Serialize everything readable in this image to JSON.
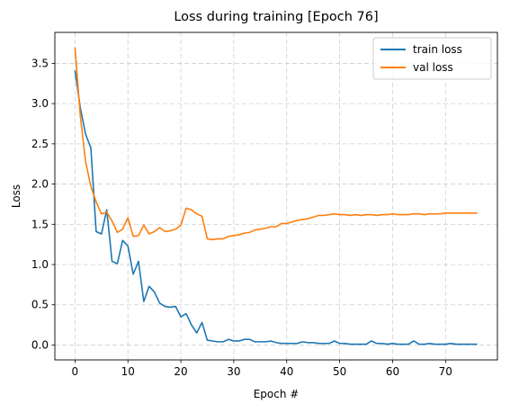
{
  "chart_data": {
    "type": "line",
    "title": "Loss during training [Epoch 76]",
    "xlabel": "Epoch #",
    "ylabel": "Loss",
    "xlim": [
      -3.8,
      79.8
    ],
    "ylim": [
      -0.185,
      3.885
    ],
    "xticks": [
      0,
      10,
      20,
      30,
      40,
      50,
      60,
      70
    ],
    "yticks": [
      0.0,
      0.5,
      1.0,
      1.5,
      2.0,
      2.5,
      3.0,
      3.5
    ],
    "grid": true,
    "legend_position": "top-right",
    "series": [
      {
        "name": "train loss",
        "color": "#1f77b4",
        "x": [
          0,
          1,
          2,
          3,
          4,
          5,
          6,
          7,
          8,
          9,
          10,
          11,
          12,
          13,
          14,
          15,
          16,
          17,
          18,
          19,
          20,
          21,
          22,
          23,
          24,
          25,
          26,
          27,
          28,
          29,
          30,
          31,
          32,
          33,
          34,
          35,
          36,
          37,
          38,
          39,
          40,
          41,
          42,
          43,
          44,
          45,
          46,
          47,
          48,
          49,
          50,
          51,
          52,
          53,
          54,
          55,
          56,
          57,
          58,
          59,
          60,
          61,
          62,
          63,
          64,
          65,
          66,
          67,
          68,
          69,
          70,
          71,
          72,
          73,
          74,
          75,
          76
        ],
        "values": [
          3.41,
          2.95,
          2.62,
          2.45,
          1.41,
          1.38,
          1.68,
          1.04,
          1.01,
          1.3,
          1.23,
          0.88,
          1.04,
          0.54,
          0.73,
          0.66,
          0.52,
          0.48,
          0.47,
          0.48,
          0.35,
          0.39,
          0.25,
          0.15,
          0.28,
          0.06,
          0.05,
          0.04,
          0.04,
          0.07,
          0.05,
          0.05,
          0.07,
          0.07,
          0.04,
          0.04,
          0.04,
          0.05,
          0.03,
          0.02,
          0.02,
          0.02,
          0.02,
          0.04,
          0.03,
          0.03,
          0.02,
          0.02,
          0.02,
          0.05,
          0.02,
          0.02,
          0.01,
          0.01,
          0.01,
          0.01,
          0.05,
          0.02,
          0.02,
          0.01,
          0.02,
          0.01,
          0.01,
          0.01,
          0.05,
          0.01,
          0.01,
          0.02,
          0.01,
          0.01,
          0.01,
          0.02,
          0.01,
          0.01,
          0.01,
          0.01,
          0.01
        ]
      },
      {
        "name": "val loss",
        "color": "#ff7f0e",
        "x": [
          0,
          1,
          2,
          3,
          4,
          5,
          6,
          7,
          8,
          9,
          10,
          11,
          12,
          13,
          14,
          15,
          16,
          17,
          18,
          19,
          20,
          21,
          22,
          23,
          24,
          25,
          26,
          27,
          28,
          29,
          30,
          31,
          32,
          33,
          34,
          35,
          36,
          37,
          38,
          39,
          40,
          41,
          42,
          43,
          44,
          45,
          46,
          47,
          48,
          49,
          50,
          51,
          52,
          53,
          54,
          55,
          56,
          57,
          58,
          59,
          60,
          61,
          62,
          63,
          64,
          65,
          66,
          67,
          68,
          69,
          70,
          71,
          72,
          73,
          74,
          75,
          76
        ],
        "values": [
          3.7,
          2.85,
          2.28,
          1.97,
          1.78,
          1.63,
          1.65,
          1.54,
          1.4,
          1.44,
          1.58,
          1.35,
          1.36,
          1.49,
          1.38,
          1.41,
          1.46,
          1.41,
          1.42,
          1.44,
          1.49,
          1.7,
          1.68,
          1.63,
          1.6,
          1.32,
          1.31,
          1.32,
          1.32,
          1.35,
          1.36,
          1.37,
          1.39,
          1.4,
          1.43,
          1.44,
          1.45,
          1.47,
          1.47,
          1.51,
          1.51,
          1.53,
          1.55,
          1.56,
          1.57,
          1.59,
          1.61,
          1.61,
          1.62,
          1.63,
          1.62,
          1.62,
          1.61,
          1.62,
          1.61,
          1.62,
          1.62,
          1.61,
          1.62,
          1.62,
          1.63,
          1.62,
          1.62,
          1.62,
          1.63,
          1.63,
          1.62,
          1.63,
          1.63,
          1.63,
          1.64,
          1.64,
          1.64,
          1.64,
          1.64,
          1.64,
          1.64
        ]
      }
    ]
  }
}
